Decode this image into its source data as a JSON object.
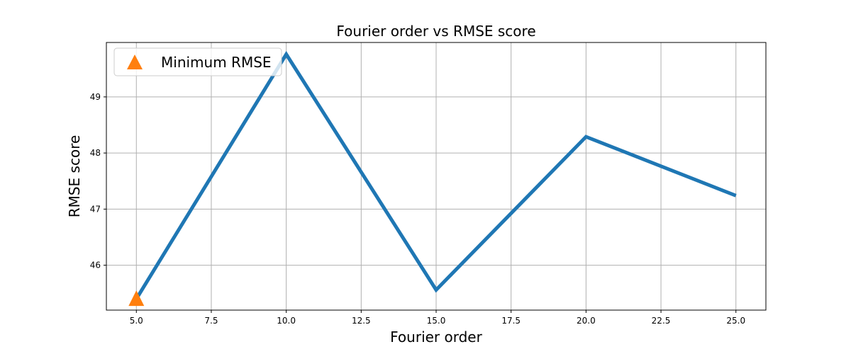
{
  "chart_data": {
    "type": "line",
    "title": "Fourier order vs RMSE score",
    "xlabel": "Fourier order",
    "ylabel": "RMSE score",
    "x": [
      5,
      10,
      15,
      20,
      25
    ],
    "series": [
      {
        "values": [
          45.4,
          49.76,
          45.56,
          48.29,
          47.24
        ],
        "color": "#1f77b4"
      }
    ],
    "markers": [
      {
        "name": "Minimum RMSE",
        "x": 5,
        "y": 45.4,
        "shape": "triangle",
        "color": "#ff7f0e"
      }
    ],
    "xlim": [
      4,
      26
    ],
    "ylim": [
      45.2,
      49.97
    ],
    "xticks": [
      5.0,
      7.5,
      10.0,
      12.5,
      15.0,
      17.5,
      20.0,
      22.5,
      25.0
    ],
    "xtick_labels": [
      "5.0",
      "7.5",
      "10.0",
      "12.5",
      "15.0",
      "17.5",
      "20.0",
      "22.5",
      "25.0"
    ],
    "yticks": [
      46,
      47,
      48,
      49
    ],
    "ytick_labels": [
      "46",
      "47",
      "48",
      "49"
    ],
    "grid": true,
    "legend_position": "upper-left",
    "legend": [
      "Minimum RMSE"
    ]
  }
}
